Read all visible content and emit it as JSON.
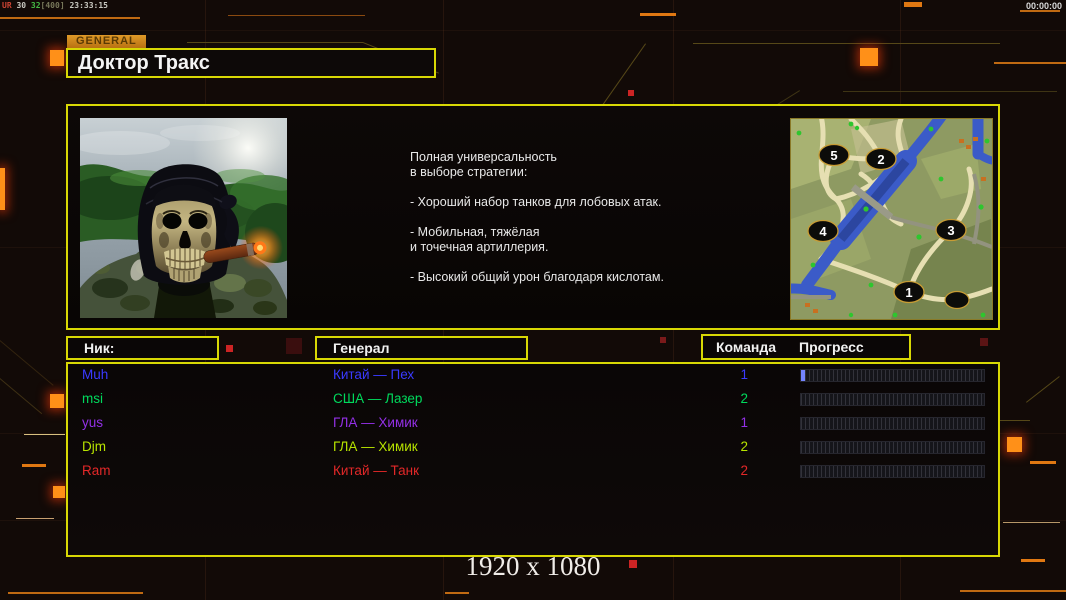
{
  "hud": {
    "debug_segments": [
      {
        "text": "UR",
        "color": "#cc4433"
      },
      {
        "text": " 30 ",
        "color": "#c8c8c0"
      },
      {
        "text": "32",
        "color": "#44bb44"
      },
      {
        "text": "[400]",
        "color": "#77775a"
      },
      {
        "text": " 23:33:15",
        "color": "#c8c8c0"
      }
    ],
    "timer": "00:00:00"
  },
  "header": {
    "tab_label": "GENERAL",
    "title": "Доктор Тракс"
  },
  "info": {
    "paragraphs": [
      "Полная универсальность\nв выборе стратегии:",
      "- Хороший набор танков для лобовых атак.",
      "- Мобильная, тяжёлая\nи точечная артиллерия.",
      "- Высокий общий урон благодаря кислотам."
    ]
  },
  "map": {
    "markers": [
      {
        "label": "5"
      },
      {
        "label": "2"
      },
      {
        "label": "4"
      },
      {
        "label": "3"
      },
      {
        "label": "1"
      },
      {
        "label": ""
      }
    ]
  },
  "table": {
    "headers": {
      "nick": "Ник:",
      "general": "Генерал",
      "team": "Команда",
      "progress": "Прогресс"
    },
    "rows": [
      {
        "nick": "Muh",
        "general": "Китай — Пех",
        "team": "1",
        "color": "#3a3aff",
        "progress": 2
      },
      {
        "nick": "msi",
        "general": "США — Лазер",
        "team": "2",
        "color": "#00d95c",
        "progress": 0
      },
      {
        "nick": "yus",
        "general": "ГЛА — Химик",
        "team": "1",
        "color": "#9330e6",
        "progress": 0
      },
      {
        "nick": "Djm",
        "general": "ГЛА — Химик",
        "team": "2",
        "color": "#b8e400",
        "progress": 0
      },
      {
        "nick": "Ram",
        "general": "Китай — Танк",
        "team": "2",
        "color": "#e22828",
        "progress": 0
      }
    ]
  },
  "footer": {
    "resolution": "1920 x 1080"
  },
  "colors": {
    "accent_yellow": "#d8d804",
    "accent_orange": "#ff9018",
    "tab_orange": "#d08a20"
  }
}
